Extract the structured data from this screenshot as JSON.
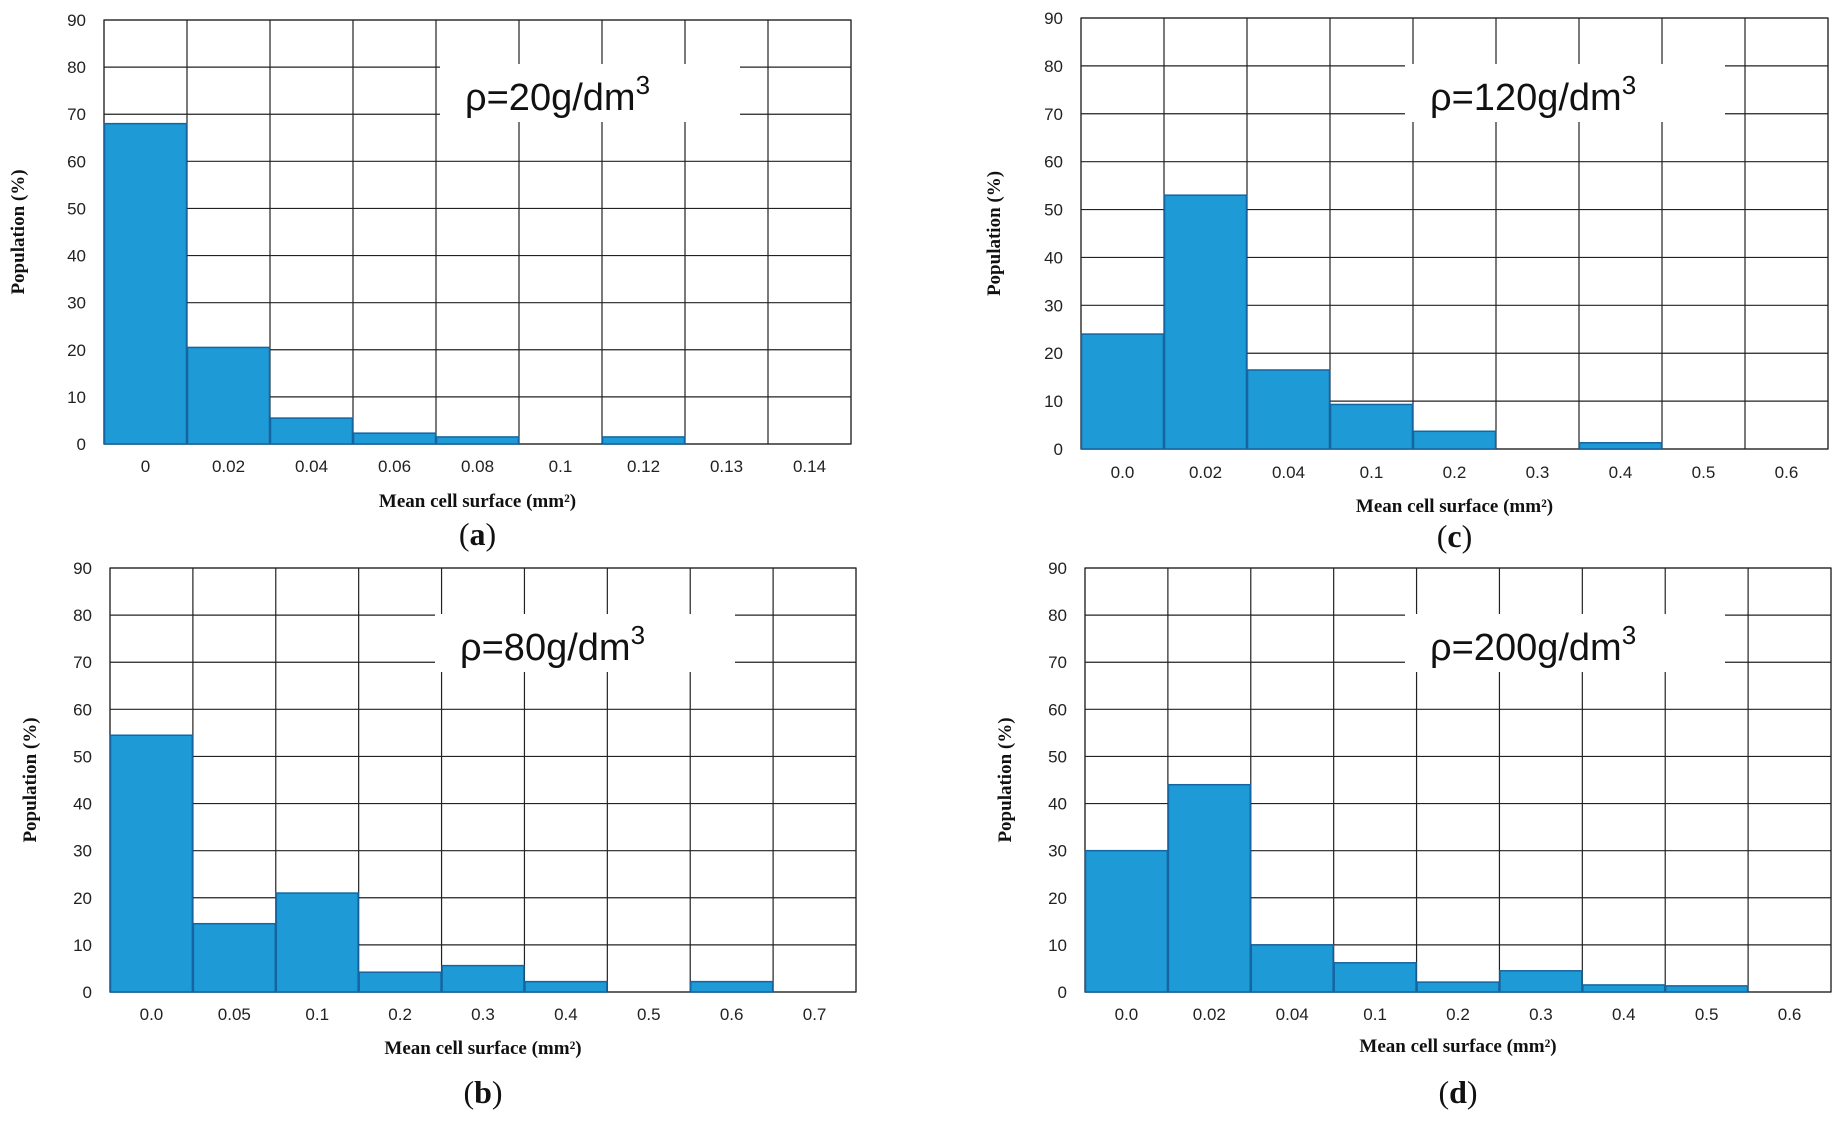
{
  "chart_data": [
    {
      "id": "a",
      "type": "bar",
      "panel_label": "a",
      "annotation": "ρ=20g/dm",
      "annotation_sup": "3",
      "xlabel": "Mean cell surface (mm²)",
      "ylabel": "Population (%)",
      "ylim": [
        0,
        90
      ],
      "yticks": [
        0,
        10,
        20,
        30,
        40,
        50,
        60,
        70,
        80,
        90
      ],
      "grid": true,
      "categories": [
        "0",
        "0.02",
        "0.04",
        "0.06",
        "0.08",
        "0.1",
        "0.12",
        "0.13",
        "0.14"
      ],
      "values": [
        68,
        20.5,
        5.5,
        2.3,
        1.5,
        0,
        1.5,
        0,
        0
      ]
    },
    {
      "id": "c",
      "type": "bar",
      "panel_label": "c",
      "annotation": "ρ=120g/dm",
      "annotation_sup": "3",
      "xlabel": "Mean cell surface (mm²)",
      "ylabel": "Population (%)",
      "ylim": [
        0,
        90
      ],
      "yticks": [
        0,
        10,
        20,
        30,
        40,
        50,
        60,
        70,
        80,
        90
      ],
      "grid": true,
      "categories": [
        "0.0",
        "0.02",
        "0.04",
        "0.1",
        "0.2",
        "0.3",
        "0.4",
        "0.5",
        "0.6"
      ],
      "values": [
        24,
        53,
        16.5,
        9.3,
        3.7,
        0,
        1.3,
        0,
        0
      ]
    },
    {
      "id": "b",
      "type": "bar",
      "panel_label": "b",
      "annotation": "ρ=80g/dm",
      "annotation_sup": "3",
      "xlabel": "Mean cell surface (mm²)",
      "ylabel": "Population (%)",
      "ylim": [
        0,
        90
      ],
      "yticks": [
        0,
        10,
        20,
        30,
        40,
        50,
        60,
        70,
        80,
        90
      ],
      "grid": true,
      "categories": [
        "0.0",
        "0.05",
        "0.1",
        "0.2",
        "0.3",
        "0.4",
        "0.5",
        "0.6",
        "0.7"
      ],
      "values": [
        54.5,
        14.5,
        21,
        4.2,
        5.6,
        2.2,
        0,
        2.2,
        0
      ]
    },
    {
      "id": "d",
      "type": "bar",
      "panel_label": "d",
      "annotation": "ρ=200g/dm",
      "annotation_sup": "3",
      "xlabel": "Mean cell surface (mm²)",
      "ylabel": "Population (%)",
      "ylim": [
        0,
        90
      ],
      "yticks": [
        0,
        10,
        20,
        30,
        40,
        50,
        60,
        70,
        80,
        90
      ],
      "grid": true,
      "categories": [
        "0.0",
        "0.02",
        "0.04",
        "0.1",
        "0.2",
        "0.3",
        "0.4",
        "0.5",
        "0.6"
      ],
      "values": [
        30,
        44,
        10,
        6.2,
        2.1,
        4.5,
        1.5,
        1.3,
        0
      ]
    }
  ],
  "colors": {
    "bar_fill": "#1e9ad6",
    "bar_stroke": "#1565a0",
    "grid": "#222222"
  }
}
